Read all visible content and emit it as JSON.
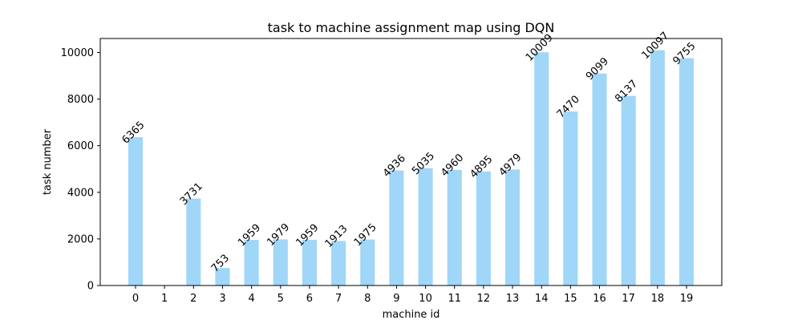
{
  "chart_data": {
    "type": "bar",
    "title": "task to machine assignment map using DQN",
    "xlabel": "machine id",
    "ylabel": "task number",
    "categories": [
      "0",
      "1",
      "2",
      "3",
      "4",
      "5",
      "6",
      "7",
      "8",
      "9",
      "10",
      "11",
      "12",
      "13",
      "14",
      "15",
      "16",
      "17",
      "18",
      "19"
    ],
    "values": [
      6365,
      0,
      3731,
      753,
      1959,
      1979,
      1959,
      1913,
      1975,
      4936,
      5035,
      4960,
      4895,
      4979,
      10009,
      7470,
      9099,
      8137,
      10097,
      9755
    ],
    "value_labels": [
      "6365",
      "",
      "3731",
      "753",
      "1959",
      "1979",
      "1959",
      "1913",
      "1975",
      "4936",
      "5035",
      "4960",
      "4895",
      "4979",
      "10009",
      "7470",
      "9099",
      "8137",
      "10097",
      "9755"
    ],
    "yticks": [
      0,
      2000,
      4000,
      6000,
      8000,
      10000
    ],
    "ylim": [
      0,
      10601
    ],
    "grid": false,
    "bar_color": "#a0d6f8"
  }
}
